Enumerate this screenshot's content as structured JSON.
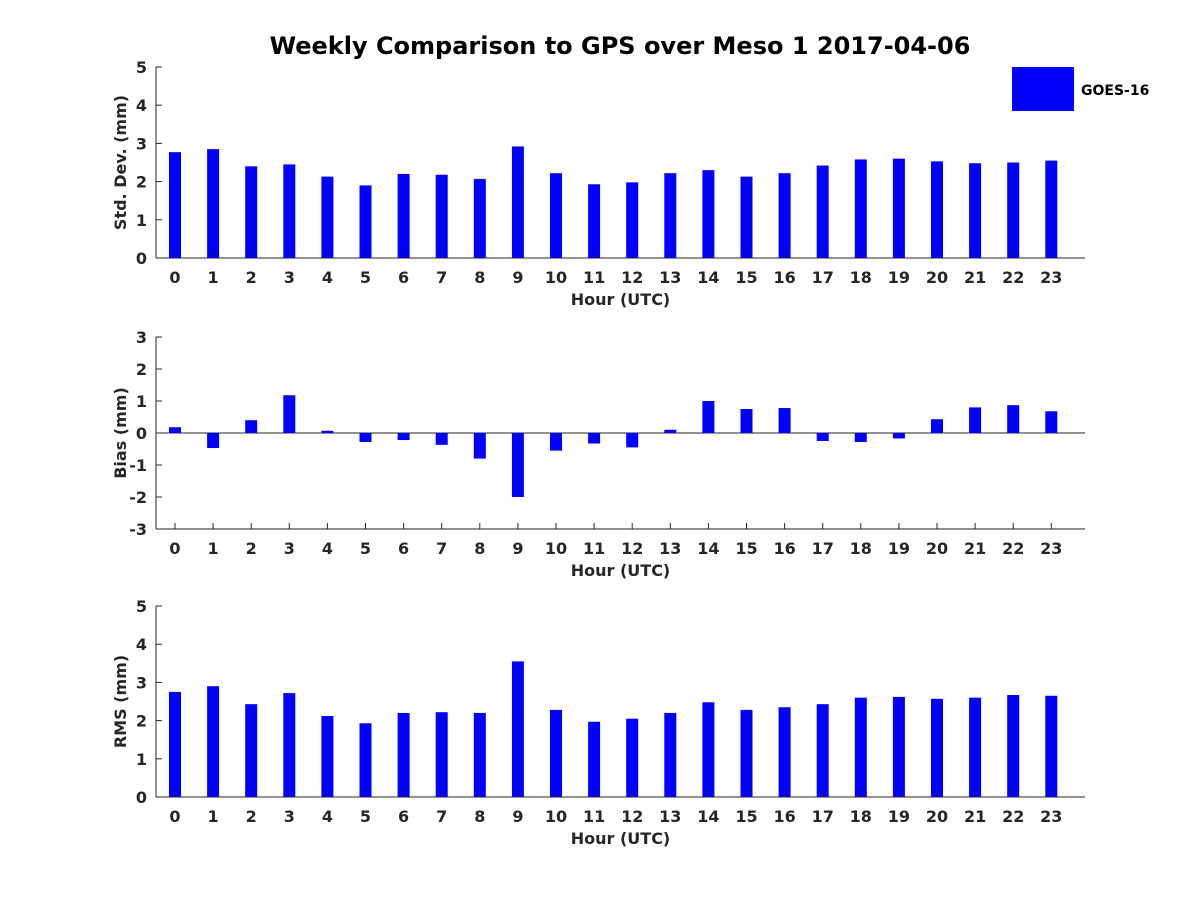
{
  "figure": {
    "title": "Weekly Comparison to GPS over Meso 1 2017-04-06",
    "legend": {
      "label": "GOES-16",
      "color": "#0000ff",
      "position": "top-right"
    },
    "bar_color": "#0000ff"
  },
  "chart_data": [
    {
      "type": "bar",
      "categories": [
        "0",
        "1",
        "2",
        "3",
        "4",
        "5",
        "6",
        "7",
        "8",
        "9",
        "10",
        "11",
        "12",
        "13",
        "14",
        "15",
        "16",
        "17",
        "18",
        "19",
        "20",
        "21",
        "22",
        "23"
      ],
      "series": [
        {
          "name": "GOES-16",
          "values": [
            2.77,
            2.85,
            2.4,
            2.45,
            2.13,
            1.9,
            2.2,
            2.18,
            2.07,
            2.92,
            2.22,
            1.93,
            1.98,
            2.22,
            2.3,
            2.13,
            2.22,
            2.42,
            2.58,
            2.6,
            2.53,
            2.48,
            2.5,
            2.55
          ]
        }
      ],
      "xlabel": "Hour (UTC)",
      "ylabel": "Std. Dev. (mm)",
      "ylim": [
        0,
        5
      ],
      "yticks": [
        "0",
        "1",
        "2",
        "3",
        "4",
        "5"
      ],
      "grid": false
    },
    {
      "type": "bar",
      "categories": [
        "0",
        "1",
        "2",
        "3",
        "4",
        "5",
        "6",
        "7",
        "8",
        "9",
        "10",
        "11",
        "12",
        "13",
        "14",
        "15",
        "16",
        "17",
        "18",
        "19",
        "20",
        "21",
        "22",
        "23"
      ],
      "series": [
        {
          "name": "GOES-16",
          "values": [
            0.18,
            -0.47,
            0.4,
            1.18,
            0.07,
            -0.28,
            -0.22,
            -0.37,
            -0.8,
            -2.0,
            -0.55,
            -0.33,
            -0.45,
            0.1,
            1.0,
            0.75,
            0.78,
            -0.25,
            -0.28,
            -0.17,
            0.43,
            0.8,
            0.87,
            0.68
          ]
        }
      ],
      "xlabel": "Hour (UTC)",
      "ylabel": "Bias (mm)",
      "ylim": [
        -3,
        3
      ],
      "yticks": [
        "-3",
        "-2",
        "-1",
        "0",
        "1",
        "2",
        "3"
      ],
      "zero_line": true,
      "grid": false
    },
    {
      "type": "bar",
      "categories": [
        "0",
        "1",
        "2",
        "3",
        "4",
        "5",
        "6",
        "7",
        "8",
        "9",
        "10",
        "11",
        "12",
        "13",
        "14",
        "15",
        "16",
        "17",
        "18",
        "19",
        "20",
        "21",
        "22",
        "23"
      ],
      "series": [
        {
          "name": "GOES-16",
          "values": [
            2.75,
            2.9,
            2.43,
            2.72,
            2.12,
            1.93,
            2.2,
            2.22,
            2.2,
            3.55,
            2.28,
            1.97,
            2.05,
            2.2,
            2.48,
            2.28,
            2.35,
            2.43,
            2.6,
            2.62,
            2.57,
            2.6,
            2.67,
            2.65
          ]
        }
      ],
      "xlabel": "Hour (UTC)",
      "ylabel": "RMS (mm)",
      "ylim": [
        0,
        5
      ],
      "yticks": [
        "0",
        "1",
        "2",
        "3",
        "4",
        "5"
      ],
      "grid": false
    }
  ]
}
